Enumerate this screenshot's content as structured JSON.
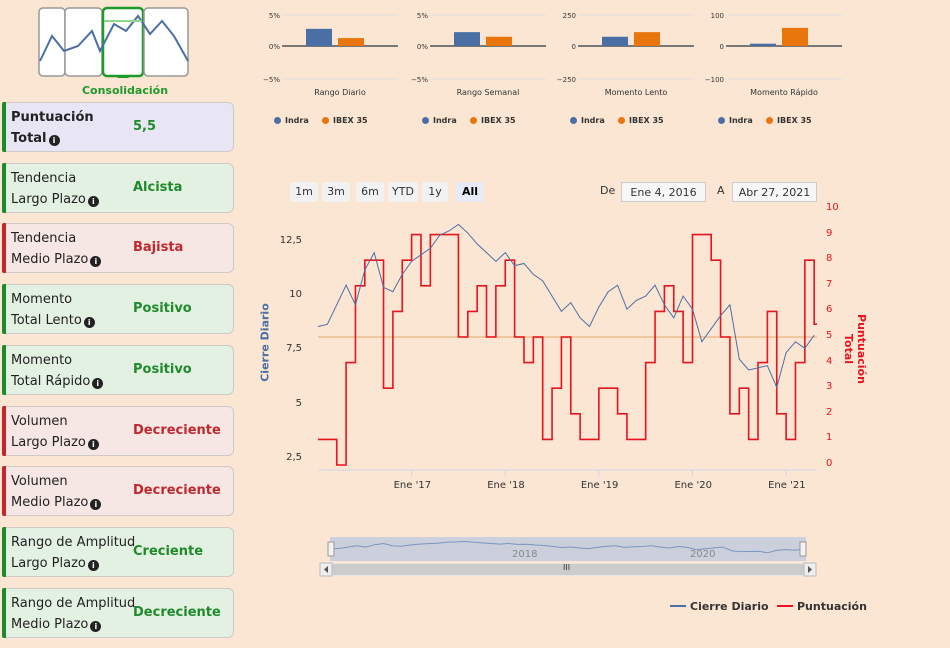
{
  "sidebar": {
    "logo_label": "Consolidación",
    "cards": [
      {
        "line1": "Puntuación",
        "line2": "Total",
        "value": "5,5",
        "status": "neutral"
      },
      {
        "line1": "Tendencia",
        "line2": "Largo Plazo",
        "value": "Alcista",
        "status": "up"
      },
      {
        "line1": "Tendencia",
        "line2": "Medio Plazo",
        "value": "Bajista",
        "status": "down"
      },
      {
        "line1": "Momento",
        "line2": "Total Lento",
        "value": "Positivo",
        "status": "up"
      },
      {
        "line1": "Momento",
        "line2": "Total Rápido",
        "value": "Positivo",
        "status": "up"
      },
      {
        "line1": "Volumen",
        "line2": "Largo Plazo",
        "value": "Decreciente",
        "status": "down"
      },
      {
        "line1": "Volumen",
        "line2": "Medio Plazo",
        "value": "Decreciente",
        "status": "down"
      },
      {
        "line1": "Rango de Amplitud",
        "line2": "Largo Plazo",
        "value": "Creciente",
        "status": "up"
      },
      {
        "line1": "Rango de Amplitud",
        "line2": "Medio Plazo",
        "value": "Decreciente",
        "status": "up"
      }
    ]
  },
  "colors": {
    "indra": "#4a6fa5",
    "ibex": "#e8760d",
    "score": "#e8131f",
    "up": "#1e8a2a",
    "down": "#c0282e",
    "neutral_bg": "#e8e6f5",
    "up_bg": "#e3f1e3",
    "down_bg": "#f6e6e4",
    "bar_up": "#1e8a2a",
    "bar_down": "#c0282e",
    "bar_neutral": "#1e8a2a"
  },
  "range_selector": {
    "buttons": [
      "1m",
      "3m",
      "6m",
      "YTD",
      "1y",
      "All"
    ],
    "selected": "All",
    "from_label": "De",
    "from_value": "Ene 4, 2016",
    "to_label": "A",
    "to_value": "Abr 27, 2021"
  },
  "navigator": {
    "years": [
      "2018",
      "2020"
    ],
    "handle_label": "III"
  },
  "chart_data": [
    {
      "type": "bar",
      "title": "Rango Diario",
      "series": [
        {
          "name": "Indra",
          "values": [
            2.6
          ]
        },
        {
          "name": "IBEX 35",
          "values": [
            1.2
          ]
        }
      ],
      "ylim": [
        -5,
        5
      ],
      "ticks": [
        "5%",
        "0%",
        "−5%"
      ]
    },
    {
      "type": "bar",
      "title": "Rango Semanal",
      "series": [
        {
          "name": "Indra",
          "values": [
            2.1
          ]
        },
        {
          "name": "IBEX 35",
          "values": [
            1.4
          ]
        }
      ],
      "ylim": [
        -5,
        5
      ],
      "ticks": [
        "5%",
        "0%",
        "−5%"
      ]
    },
    {
      "type": "bar",
      "title": "Momento Lento",
      "series": [
        {
          "name": "Indra",
          "values": [
            70
          ]
        },
        {
          "name": "IBEX 35",
          "values": [
            105
          ]
        }
      ],
      "ylim": [
        -250,
        250
      ],
      "ticks": [
        "250",
        "0",
        "−250"
      ]
    },
    {
      "type": "bar",
      "title": "Momento Rápido",
      "series": [
        {
          "name": "Indra",
          "values": [
            7
          ]
        },
        {
          "name": "IBEX 35",
          "values": [
            55
          ]
        }
      ],
      "ylim": [
        -100,
        100
      ],
      "ticks": [
        "100",
        "0",
        "−100"
      ]
    },
    {
      "type": "line",
      "ylabel": "Cierre Diario",
      "ylabel_right": "Puntuación Total",
      "ylim": [
        2,
        13.5
      ],
      "yticks": [
        "12,5",
        "10",
        "7,5",
        "5",
        "2,5"
      ],
      "ylim_right": [
        0,
        10
      ],
      "yticks_right": [
        "10",
        "9",
        "8",
        "7",
        "6",
        "5",
        "4",
        "3",
        "2",
        "1",
        "0"
      ],
      "x_labels": [
        "Ene '17",
        "Ene '18",
        "Ene '19",
        "Ene '20",
        "Ene '21"
      ],
      "x_label_values": [
        2017,
        2018,
        2019,
        2020,
        2021
      ],
      "xlim": [
        2016.0,
        2021.33
      ],
      "threshold_score": 5,
      "series": [
        {
          "name": "Cierre Diario",
          "x": [
            2016.0,
            2016.1,
            2016.2,
            2016.3,
            2016.4,
            2016.5,
            2016.6,
            2016.7,
            2016.8,
            2016.9,
            2017.0,
            2017.1,
            2017.2,
            2017.3,
            2017.4,
            2017.5,
            2017.6,
            2017.7,
            2017.8,
            2017.9,
            2018.0,
            2018.1,
            2018.2,
            2018.3,
            2018.4,
            2018.5,
            2018.6,
            2018.7,
            2018.8,
            2018.9,
            2019.0,
            2019.1,
            2019.2,
            2019.3,
            2019.4,
            2019.5,
            2019.6,
            2019.7,
            2019.8,
            2019.9,
            2020.0,
            2020.1,
            2020.2,
            2020.3,
            2020.4,
            2020.5,
            2020.6,
            2020.7,
            2020.8,
            2020.9,
            2021.0,
            2021.1,
            2021.2,
            2021.3
          ],
          "values": [
            8.6,
            8.7,
            9.6,
            10.5,
            9.6,
            11.2,
            12.0,
            10.4,
            10.2,
            11.0,
            11.6,
            11.9,
            12.2,
            12.8,
            13.0,
            13.3,
            12.9,
            12.4,
            12.0,
            11.6,
            12.0,
            11.4,
            11.5,
            11.0,
            10.7,
            10.0,
            9.3,
            9.7,
            9.0,
            8.6,
            9.5,
            10.2,
            10.5,
            9.4,
            9.8,
            10.0,
            10.5,
            9.6,
            9.0,
            10.0,
            9.4,
            7.9,
            8.5,
            9.1,
            9.6,
            7.1,
            6.6,
            6.7,
            6.8,
            5.8,
            7.4,
            7.9,
            7.6,
            8.2
          ]
        },
        {
          "name": "Puntuación",
          "x": [
            2016.0,
            2016.1,
            2016.2,
            2016.3,
            2016.4,
            2016.5,
            2016.6,
            2016.7,
            2016.8,
            2016.9,
            2017.0,
            2017.1,
            2017.2,
            2017.3,
            2017.4,
            2017.5,
            2017.6,
            2017.7,
            2017.8,
            2017.9,
            2018.0,
            2018.1,
            2018.2,
            2018.3,
            2018.4,
            2018.5,
            2018.6,
            2018.7,
            2018.8,
            2018.9,
            2019.0,
            2019.1,
            2019.2,
            2019.3,
            2019.4,
            2019.5,
            2019.6,
            2019.7,
            2019.8,
            2019.9,
            2020.0,
            2020.1,
            2020.2,
            2020.3,
            2020.4,
            2020.5,
            2020.6,
            2020.7,
            2020.8,
            2020.9,
            2021.0,
            2021.1,
            2021.2,
            2021.3
          ],
          "values": [
            1,
            1,
            0,
            4,
            7,
            8,
            8,
            3,
            6,
            8,
            9,
            7,
            9,
            9,
            9,
            5,
            6,
            7,
            5,
            7,
            8,
            5,
            4,
            5,
            1,
            3,
            5,
            2,
            1,
            1,
            3,
            3,
            2,
            1,
            1,
            4,
            6,
            7,
            6,
            4,
            9,
            9,
            8,
            5,
            2,
            3,
            1,
            4,
            6,
            2,
            1,
            4,
            8,
            5.5
          ]
        }
      ]
    }
  ],
  "legend": {
    "cierre": "Cierre Diario",
    "puntuacion": "Puntuación"
  }
}
